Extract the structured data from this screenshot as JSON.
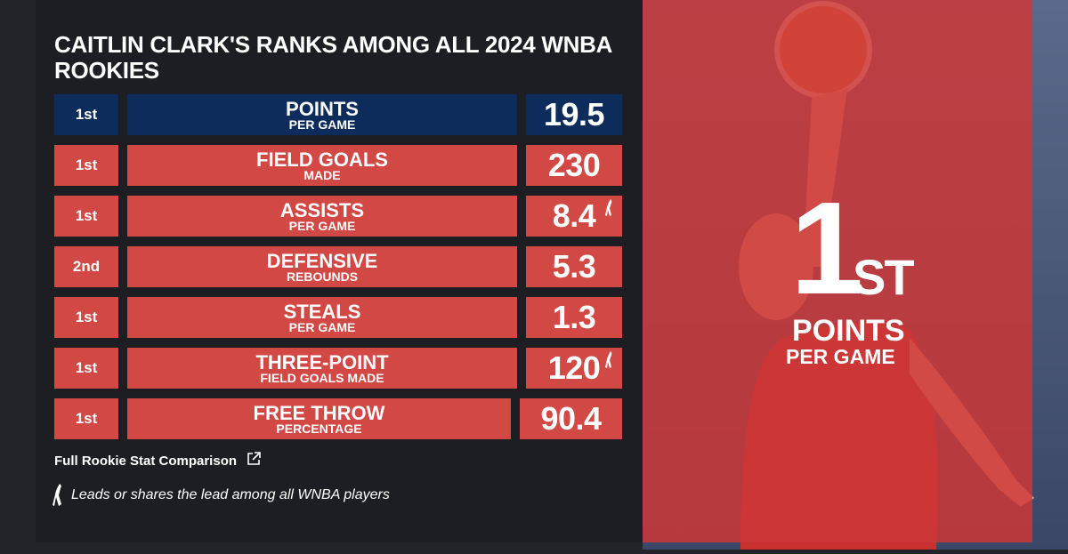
{
  "header": {
    "title": "CAITLIN CLARK'S RANKS AMONG ALL 2024 WNBA ROOKIES"
  },
  "rows": [
    {
      "rank": "1st",
      "stat": "POINTS",
      "sub": "PER GAME",
      "value": 19.5,
      "highlight": true,
      "leader": false
    },
    {
      "rank": "1st",
      "stat": "FIELD GOALS",
      "sub": "MADE",
      "value": 230,
      "highlight": false,
      "leader": false
    },
    {
      "rank": "1st",
      "stat": "ASSISTS",
      "sub": "PER GAME",
      "value": 8.4,
      "highlight": false,
      "leader": true
    },
    {
      "rank": "2nd",
      "stat": "DEFENSIVE",
      "sub": "REBOUNDS",
      "value": 5.3,
      "highlight": false,
      "leader": false
    },
    {
      "rank": "1st",
      "stat": "STEALS",
      "sub": "PER GAME",
      "value": 1.3,
      "highlight": false,
      "leader": false
    },
    {
      "rank": "1st",
      "stat": "THREE-POINT",
      "sub": "FIELD GOALS MADE",
      "value": 120,
      "highlight": false,
      "leader": true
    },
    {
      "rank": "1st",
      "stat": "FREE THROW",
      "sub": "PERCENTAGE",
      "value": 90.4,
      "highlight": false,
      "leader": false
    }
  ],
  "link": "Full Rookie Stat Comparison",
  "footnote": "Leads or shares the lead among all WNBA players",
  "feature": {
    "number": "1",
    "suffix": "ST",
    "stat": "POINTS",
    "sub": "PER GAME"
  }
}
